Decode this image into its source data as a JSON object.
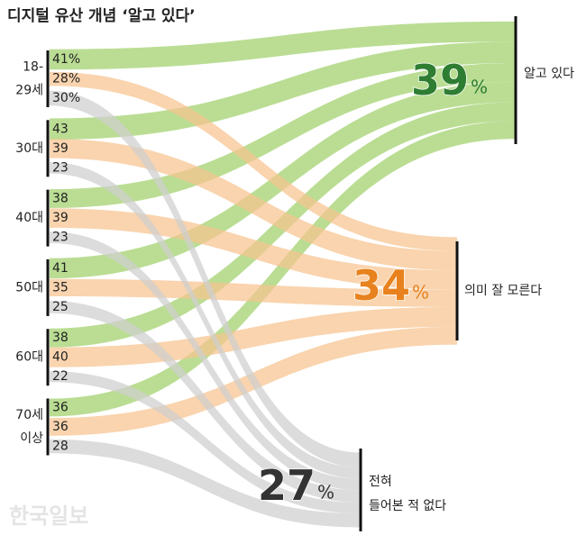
{
  "chart_data": {
    "type": "sankey",
    "title": "디지털 유산 개념 ‘알고 있다’",
    "sources": [
      [
        "18-",
        "29세"
      ],
      [
        "30대"
      ],
      [
        "40대"
      ],
      [
        "50대"
      ],
      [
        "60대"
      ],
      [
        "70세",
        "이상"
      ]
    ],
    "series": [
      {
        "name": [
          "알고 있다"
        ],
        "color": "#9fd06a",
        "number_color": "#2e7d32",
        "total": 39,
        "unit": "%",
        "values": [
          41,
          43,
          38,
          41,
          38,
          36
        ],
        "value_labels": [
          "41%",
          "43",
          "38",
          "41",
          "38",
          "36"
        ]
      },
      {
        "name": [
          "의미 잘 모른다"
        ],
        "color": "#f7c38f",
        "number_color": "#e8821e",
        "total": 34,
        "unit": "%",
        "values": [
          28,
          39,
          39,
          35,
          40,
          36
        ],
        "value_labels": [
          "28%",
          "39",
          "39",
          "35",
          "40",
          "36"
        ]
      },
      {
        "name": [
          "전혀",
          "들어본 적 없다"
        ],
        "color": "#cfcfcf",
        "number_color": "#333333",
        "total": 27,
        "unit": "%",
        "values": [
          30,
          23,
          23,
          25,
          22,
          28
        ],
        "value_labels": [
          "30%",
          "23",
          "23",
          "25",
          "22",
          "28"
        ]
      }
    ],
    "watermark": "한국일보"
  }
}
